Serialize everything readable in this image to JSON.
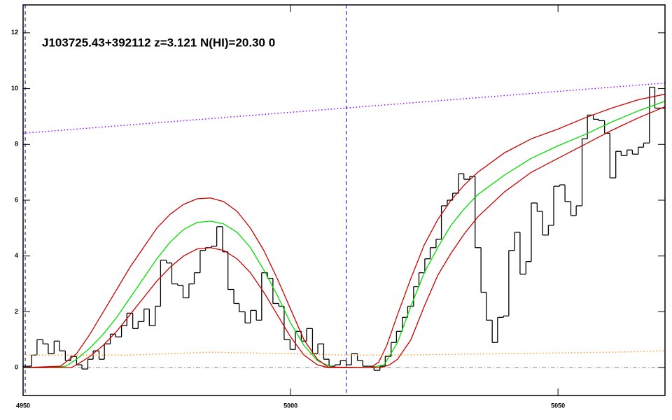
{
  "chart_data": {
    "type": "line",
    "title": "J103725.43+392112 z=3.121 N(HI)=20.30 0",
    "xlim": [
      4950,
      5070
    ],
    "ylim": [
      -1,
      13
    ],
    "xticks": [
      4950,
      5000,
      5050
    ],
    "yticks": [
      0,
      2,
      4,
      6,
      8,
      10,
      12
    ],
    "reference_y": 0,
    "vlines": [
      4950.4,
      5010.4
    ],
    "vline_color": "#0000cc",
    "reference_color": "#888888",
    "series": [
      {
        "style": "step",
        "color": "#000000",
        "x": [
          4950.0,
          4951.6,
          4952.6,
          4953.7,
          4954.7,
          4955.8,
          4956.8,
          4957.9,
          4958.9,
          4960.0,
          4961.0,
          4962.1,
          4963.1,
          4964.2,
          4965.2,
          4966.3,
          4967.3,
          4968.4,
          4969.4,
          4970.5,
          4971.5,
          4972.6,
          4973.6,
          4974.7,
          4975.7,
          4976.8,
          4977.8,
          4978.9,
          4979.9,
          4981.0,
          4982.0,
          4983.1,
          4984.1,
          4985.2,
          4986.2,
          4987.3,
          4988.3,
          4989.4,
          4990.4,
          4991.5,
          4992.5,
          4993.6,
          4994.6,
          4995.7,
          4996.7,
          4997.8,
          4998.8,
          4999.9,
          5000.9,
          5002.0,
          5003.0,
          5004.1,
          5005.1,
          5006.2,
          5007.2,
          5008.3,
          5009.3,
          5010.4,
          5011.4,
          5012.5,
          5013.5,
          5014.6,
          5015.6,
          5016.7,
          5017.7,
          5018.8,
          5019.8,
          5020.9,
          5021.9,
          5023.0,
          5024.0,
          5025.1,
          5026.1,
          5027.2,
          5028.2,
          5029.3,
          5030.3,
          5031.4,
          5032.4,
          5033.5,
          5034.5,
          5035.6,
          5036.6,
          5037.7,
          5038.7,
          5039.8,
          5040.8,
          5041.9,
          5042.9,
          5044.0,
          5045.0,
          5046.1,
          5047.1,
          5048.2,
          5049.2,
          5050.3,
          5051.3,
          5052.4,
          5053.4,
          5054.5,
          5055.5,
          5056.6,
          5057.6,
          5058.7,
          5059.7,
          5060.8,
          5061.8,
          5062.9,
          5063.9,
          5065.0,
          5066.0,
          5067.1,
          5068.1
        ],
        "values": [
          0.05,
          0.45,
          1.0,
          0.85,
          0.5,
          0.95,
          0.6,
          0.25,
          0.4,
          0.1,
          -0.05,
          0.3,
          0.6,
          0.3,
          0.85,
          1.2,
          1.1,
          1.5,
          1.95,
          1.4,
          1.65,
          2.1,
          1.5,
          2.2,
          3.85,
          3.75,
          3.0,
          2.95,
          2.5,
          3.0,
          3.4,
          4.2,
          4.3,
          4.35,
          5.05,
          4.15,
          2.8,
          2.3,
          2.0,
          1.6,
          2.05,
          1.7,
          3.4,
          3.2,
          2.3,
          2.2,
          1.0,
          0.65,
          1.3,
          0.95,
          1.4,
          0.5,
          0.85,
          0.3,
          0.05,
          0.1,
          0.25,
          0.1,
          0.5,
          0.25,
          0.05,
          0.05,
          -0.1,
          0.05,
          0.4,
          0.9,
          1.3,
          1.8,
          2.2,
          2.9,
          3.4,
          3.9,
          4.3,
          4.6,
          5.8,
          6.0,
          6.25,
          6.95,
          6.75,
          6.85,
          4.3,
          2.7,
          1.7,
          0.9,
          1.8,
          1.85,
          4.2,
          4.85,
          3.35,
          3.8,
          5.9,
          5.6,
          4.75,
          5.1,
          6.5,
          6.55,
          5.95,
          5.45,
          5.8,
          8.2,
          9.05,
          8.9,
          8.85,
          8.4,
          6.8,
          7.75,
          7.6,
          7.8,
          7.65,
          7.9,
          8.05,
          10.05,
          9.3
        ]
      },
      {
        "style": "line",
        "color": "#00dd00",
        "x": [
          4950,
          4955,
          4958,
          4960,
          4962.5,
          4965,
          4967.5,
          4970,
          4972.5,
          4975,
          4977.5,
          4980,
          4982.5,
          4985,
          4987.5,
          4990,
          4992.5,
          4995,
          4997.5,
          5000,
          5002.5,
          5005,
          5007.5,
          5010,
          5015,
          5017.5,
          5020,
          5022.5,
          5025,
          5027.5,
          5030,
          5032.5,
          5035,
          5040,
          5045,
          5050,
          5055,
          5060,
          5065,
          5070
        ],
        "values": [
          0,
          0,
          0.05,
          0.3,
          0.7,
          1.2,
          1.8,
          2.5,
          3.2,
          3.9,
          4.5,
          4.95,
          5.2,
          5.25,
          5.15,
          4.85,
          4.3,
          3.5,
          2.6,
          1.6,
          0.8,
          0.25,
          0.03,
          0,
          0,
          0.1,
          0.9,
          2.2,
          3.4,
          4.3,
          5.1,
          5.7,
          6.2,
          6.9,
          7.5,
          7.95,
          8.35,
          8.8,
          9.2,
          9.55
        ]
      },
      {
        "style": "line",
        "color": "#cc0000",
        "x": [
          4950,
          4957,
          4960,
          4962.5,
          4965,
          4967.5,
          4970,
          4972.5,
          4975,
          4977.5,
          4980,
          4982.5,
          4985,
          4987.5,
          4990,
          4992.5,
          4995,
          4997.5,
          5000,
          5002.5,
          5005,
          5007,
          5015,
          5016.5,
          5018,
          5020,
          5022.5,
          5025,
          5027.5,
          5030,
          5032.5,
          5035,
          5040,
          5045,
          5050,
          5055,
          5060,
          5065,
          5070
        ],
        "values": [
          0,
          0.05,
          0.5,
          1.2,
          2.0,
          2.8,
          3.6,
          4.3,
          5.0,
          5.5,
          5.85,
          6.05,
          6.08,
          5.95,
          5.6,
          5.0,
          4.2,
          3.2,
          2.1,
          1.0,
          0.3,
          0.02,
          0,
          0.2,
          0.8,
          1.9,
          3.2,
          4.4,
          5.3,
          6.0,
          6.55,
          7.0,
          7.7,
          8.2,
          8.55,
          8.95,
          9.3,
          9.6,
          9.8
        ]
      },
      {
        "style": "line",
        "color": "#cc0000",
        "x": [
          4950,
          4959,
          4960,
          4962.5,
          4965,
          4967.5,
          4970,
          4972.5,
          4975,
          4977.5,
          4980,
          4982.5,
          4985,
          4987.5,
          4990,
          4992.5,
          4995,
          4997.5,
          5000,
          5002.5,
          5005,
          5007,
          5017,
          5018.5,
          5020,
          5022.5,
          5025,
          5027.5,
          5030,
          5032.5,
          5035,
          5040,
          5045,
          5050,
          5055,
          5060,
          5065,
          5070
        ],
        "values": [
          0,
          0,
          0.1,
          0.4,
          0.8,
          1.3,
          1.9,
          2.5,
          3.1,
          3.6,
          4.0,
          4.25,
          4.3,
          4.2,
          3.9,
          3.4,
          2.7,
          1.9,
          1.1,
          0.45,
          0.1,
          0,
          0,
          0.1,
          0.3,
          1.0,
          2.2,
          3.3,
          4.1,
          4.8,
          5.4,
          6.3,
          7.0,
          7.5,
          8.0,
          8.5,
          8.95,
          9.35
        ]
      },
      {
        "style": "dotted",
        "color": "#9900ff",
        "x": [
          4950,
          5070
        ],
        "values": [
          8.4,
          10.2
        ]
      },
      {
        "style": "dotted",
        "color": "#ff9933",
        "x": [
          4950,
          4970,
          4985,
          5000,
          5010,
          5020,
          5040,
          5060,
          5070
        ],
        "values": [
          0.45,
          0.45,
          0.55,
          0.5,
          0.45,
          0.45,
          0.5,
          0.55,
          0.6
        ]
      }
    ]
  }
}
